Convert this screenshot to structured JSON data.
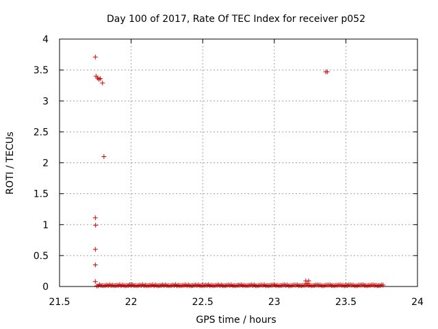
{
  "chart_data": {
    "type": "scatter",
    "title": "Day 100 of 2017, Rate Of TEC Index for receiver p052",
    "xlabel": "GPS time / hours",
    "ylabel": "ROTI / TECUs",
    "xlim": [
      21.5,
      24
    ],
    "ylim": [
      0,
      4
    ],
    "xticks": [
      "21.5",
      "22",
      "22.5",
      "23",
      "23.5",
      "24"
    ],
    "yticks": [
      "0",
      "0.5",
      "1",
      "1.5",
      "2",
      "2.5",
      "3",
      "3.5",
      "4"
    ],
    "grid": true,
    "marker": "+",
    "color": "#cc0000",
    "series": [
      {
        "points": [
          [
            21.75,
            3.71
          ],
          [
            21.755,
            3.4
          ],
          [
            21.765,
            3.37
          ],
          [
            21.775,
            3.35
          ],
          [
            21.785,
            3.36
          ],
          [
            21.8,
            3.29
          ],
          [
            21.81,
            2.1
          ],
          [
            21.75,
            1.11
          ],
          [
            21.752,
            0.99
          ],
          [
            21.75,
            0.6
          ],
          [
            21.75,
            0.35
          ],
          [
            21.75,
            0.08
          ],
          [
            21.76,
            0.01
          ],
          [
            23.36,
            3.47
          ],
          [
            23.37,
            3.47
          ],
          [
            23.22,
            0.09
          ],
          [
            23.24,
            0.09
          ],
          [
            23.23,
            0.05
          ]
        ],
        "baseline": {
          "x_start": 21.77,
          "x_end": 23.76,
          "step": 0.01
        }
      }
    ]
  }
}
